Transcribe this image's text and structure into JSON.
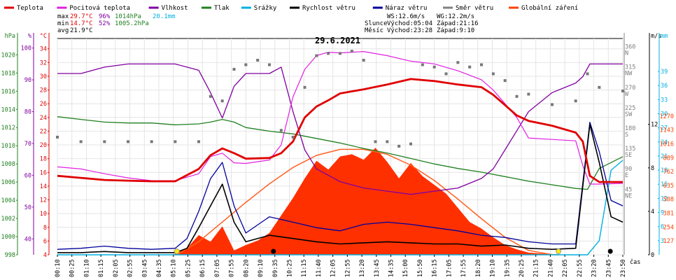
{
  "chart_data": {
    "type": "line",
    "title": "29.6.2021",
    "legend": [
      {
        "label": "Teplota",
        "color": "#e00000"
      },
      {
        "label": "Pocitová teplota",
        "color": "#e020e0"
      },
      {
        "label": "Vlhkost",
        "color": "#8000a0"
      },
      {
        "label": "Tlak",
        "color": "#208020"
      },
      {
        "label": "Srážky",
        "color": "#00b0e0"
      },
      {
        "label": "Rychlost větru",
        "color": "#000000"
      },
      {
        "label": "Náraz větru",
        "color": "#00009a"
      },
      {
        "label": "Směr větru",
        "color": "#808080"
      },
      {
        "label": "Globální záření",
        "color": "#ff4000"
      }
    ],
    "stats": {
      "max_label": "max",
      "max_temp": "29.7°C",
      "max_hum": "96%",
      "max_press": "1014hPa",
      "rain_total": "20.1mm",
      "min_label": "min",
      "min_temp": "14.7°C",
      "min_hum": "52%",
      "min_press": "1005.2hPa",
      "avg_label": "avg",
      "avg_temp": "21.9°C",
      "ws": "WS:12.6m/s",
      "wg": "WG:12.2m/s",
      "sun_label": "Slunce",
      "sunrise": "Východ:05:04",
      "sunset": "Západ:21:16",
      "moon_label": "Měsíc",
      "moonrise": "Východ:23:28",
      "moonset": "Západ:9:10"
    },
    "axes": {
      "pressure": {
        "unit": "hPa",
        "color": "#208020",
        "ticks": [
          998,
          1000,
          1002,
          1004,
          1006,
          1008,
          1010,
          1012,
          1014,
          1016,
          1018,
          1020
        ]
      },
      "humidity": {
        "unit": "%",
        "color": "#8000a0",
        "ticks": [
          40,
          50,
          60,
          70,
          80,
          90,
          100
        ]
      },
      "temperature": {
        "unit": "°C",
        "color": "#e00000",
        "ticks": [
          4,
          6,
          8,
          10,
          12,
          14,
          16,
          18,
          20,
          22,
          24,
          26,
          28,
          30,
          32,
          34
        ]
      },
      "wind_dir": {
        "color": "#808080",
        "ticks": [
          {
            "v": 360,
            "l": "N"
          },
          {
            "v": 315,
            "l": "NW"
          },
          {
            "v": 270,
            "l": "W"
          },
          {
            "v": 225,
            "l": "SW"
          },
          {
            "v": 180,
            "l": "S"
          },
          {
            "v": 135,
            "l": "SE"
          },
          {
            "v": 90,
            "l": "E"
          },
          {
            "v": 45,
            "l": "NE"
          }
        ]
      },
      "wind_speed": {
        "unit": "m/s",
        "color": "#000000",
        "ticks": [
          0,
          4,
          8,
          12
        ]
      },
      "rain": {
        "unit": "mm",
        "color": "#00b0e0",
        "ticks": [
          3,
          6,
          9,
          12,
          15,
          18,
          21,
          24,
          27,
          30,
          33,
          36,
          39
        ]
      },
      "radiation": {
        "unit": "W/m²",
        "color": "#ff4000",
        "ticks": [
          127,
          254,
          381,
          508,
          635,
          762,
          889,
          1016,
          1143,
          1270
        ]
      },
      "x_label": "čas",
      "x_ticks": [
        "00:10",
        "00:25",
        "01:10",
        "01:15",
        "02:05",
        "02:55",
        "03:45",
        "04:35",
        "05:10",
        "05:25",
        "06:15",
        "07:05",
        "07:55",
        "08:20",
        "09:10",
        "09:35",
        "10:25",
        "11:15",
        "11:40",
        "12:05",
        "12:55",
        "13:20",
        "13:45",
        "14:35",
        "15:00",
        "15:50",
        "16:15",
        "17:05",
        "17:55",
        "18:20",
        "19:10",
        "19:35",
        "20:25",
        "21:15",
        "21:40",
        "22:05",
        "22:55",
        "23:20",
        "23:45",
        "23:50"
      ]
    },
    "series": {
      "temperature": {
        "x": [
          0,
          1,
          2,
          3,
          4,
          5,
          6,
          6.5,
          7,
          7.5,
          8,
          9,
          9.5,
          10,
          10.5,
          11,
          11.5,
          12,
          13,
          14,
          15,
          16,
          17,
          18,
          18.5,
          19,
          19.5,
          20,
          21,
          22,
          22.3,
          22.6,
          23,
          24
        ],
        "y": [
          15.5,
          15.2,
          14.9,
          14.8,
          14.7,
          14.7,
          16.5,
          18.5,
          19.5,
          18.8,
          18.0,
          18.1,
          18.8,
          20.5,
          24.0,
          25.6,
          26.5,
          27.5,
          28.1,
          28.8,
          29.6,
          29.3,
          28.8,
          28.4,
          27.3,
          25.8,
          24.3,
          23.5,
          22.8,
          21.8,
          20.5,
          15.5,
          14.6,
          14.6
        ]
      },
      "feels_like": {
        "x": [
          0,
          1,
          2,
          3,
          4,
          5,
          6,
          6.5,
          7,
          7.5,
          8,
          9,
          9.5,
          10,
          10.5,
          11,
          11.5,
          12,
          13,
          14,
          15,
          16,
          17,
          18,
          18.5,
          19,
          19.5,
          20,
          21,
          22,
          22.3,
          22.6,
          23,
          24
        ],
        "y": [
          16.8,
          16.5,
          15.8,
          15.2,
          14.8,
          14.8,
          15.8,
          18.3,
          18.8,
          17.4,
          17.3,
          17.8,
          20.0,
          27.0,
          31.0,
          33.0,
          33.5,
          33.4,
          33.6,
          33.0,
          32.2,
          31.8,
          30.8,
          29.5,
          28.0,
          26.0,
          24.0,
          21.0,
          20.8,
          20.6,
          17.0,
          14.3,
          14.3,
          14.4
        ]
      },
      "humidity": {
        "x": [
          0,
          1,
          2,
          3,
          4,
          5,
          5.5,
          6,
          6.5,
          7,
          7.5,
          8,
          9,
          9.5,
          10,
          10.5,
          11,
          11.5,
          12,
          13,
          14,
          15,
          16,
          17,
          18,
          18.5,
          19,
          19.5,
          20,
          21,
          22,
          22.3,
          22.6,
          23,
          24
        ],
        "y": [
          92,
          92,
          94,
          95,
          95,
          95,
          94,
          93,
          86,
          78,
          88,
          92,
          92,
          94,
          80,
          68,
          62,
          60,
          58,
          56,
          55,
          54,
          55,
          56,
          59,
          62,
          68,
          74,
          80,
          86,
          89,
          91,
          95,
          95,
          95
        ]
      },
      "pressure": {
        "x": [
          0,
          1,
          2,
          3,
          4,
          5,
          6,
          6.5,
          7,
          7.5,
          8,
          9,
          10,
          11,
          12,
          13,
          14,
          15,
          16,
          17,
          18,
          19,
          20,
          21,
          22,
          22.5,
          23,
          24
        ],
        "y": [
          1013.2,
          1012.9,
          1012.6,
          1012.5,
          1012.5,
          1012.3,
          1012.4,
          1012.6,
          1012.9,
          1012.6,
          1012.0,
          1011.6,
          1011.3,
          1010.8,
          1010.3,
          1009.7,
          1009.2,
          1008.6,
          1008.0,
          1007.5,
          1007.1,
          1006.6,
          1006.1,
          1005.7,
          1005.3,
          1005.2,
          1007.5,
          1008.8
        ]
      },
      "rain": {
        "x": [
          0,
          22.5,
          23,
          23.5,
          24
        ],
        "y": [
          0,
          0,
          3,
          18,
          20.1
        ]
      },
      "wind_speed": {
        "x": [
          0,
          1,
          2,
          3,
          4,
          5,
          5.5,
          6,
          6.5,
          7,
          7.5,
          8,
          9,
          10,
          11,
          12,
          13,
          14,
          15,
          16,
          17,
          18,
          19,
          20,
          21,
          22,
          22.6,
          23,
          23.5,
          24
        ],
        "y": [
          0.2,
          0.2,
          0.3,
          0.2,
          0.2,
          0.2,
          0.6,
          2.5,
          4.5,
          6.5,
          3.0,
          1.2,
          1.8,
          1.5,
          1.2,
          1.0,
          1.1,
          1.2,
          1.1,
          1.0,
          1.0,
          0.8,
          0.9,
          0.6,
          0.5,
          0.6,
          12.0,
          8.5,
          3.5,
          3.0
        ]
      },
      "wind_gust": {
        "x": [
          0,
          1,
          2,
          3,
          4,
          5,
          5.5,
          6,
          6.5,
          7,
          7.5,
          8,
          9,
          10,
          11,
          12,
          13,
          14,
          15,
          16,
          17,
          18,
          19,
          20,
          21,
          22,
          22.6,
          23,
          23.5,
          24
        ],
        "y": [
          0.5,
          0.6,
          0.8,
          0.6,
          0.5,
          0.6,
          1.5,
          4.0,
          7.0,
          8.5,
          4.5,
          2.0,
          3.5,
          3.0,
          2.5,
          2.2,
          2.8,
          3.0,
          2.8,
          2.5,
          2.2,
          1.8,
          1.6,
          1.2,
          1.0,
          1.0,
          12.2,
          9.5,
          5.0,
          4.5
        ]
      },
      "wind_dir": {
        "x": [
          0,
          1,
          2,
          3,
          4,
          5,
          6,
          6.5,
          7,
          7.5,
          8,
          8.5,
          9,
          9.5,
          10,
          10.5,
          11,
          11.5,
          12,
          12.5,
          13,
          13.5,
          14,
          14.5,
          15,
          15.5,
          16,
          16.5,
          17,
          17.5,
          18,
          18.5,
          19,
          19.5,
          20,
          21,
          22,
          22.5,
          23,
          24
        ],
        "y": [
          160,
          150,
          150,
          150,
          150,
          150,
          150,
          250,
          240,
          310,
          320,
          330,
          320,
          175,
          160,
          270,
          340,
          345,
          345,
          350,
          330,
          150,
          150,
          140,
          145,
          320,
          315,
          300,
          325,
          315,
          320,
          300,
          285,
          250,
          255,
          232,
          240,
          300,
          270,
          262
        ]
      },
      "radiation": {
        "x": [
          0,
          4.9,
          5.5,
          6,
          6.5,
          7,
          7.5,
          8,
          8.5,
          9,
          9.5,
          10,
          10.5,
          11,
          11.5,
          12,
          12.5,
          13,
          13.5,
          14,
          14.5,
          15,
          15.5,
          16,
          16.5,
          17,
          17.5,
          18,
          18.5,
          19,
          19.5,
          20,
          21,
          21.3,
          24
        ],
        "y": [
          0,
          0,
          60,
          180,
          120,
          260,
          40,
          90,
          130,
          200,
          360,
          520,
          700,
          860,
          780,
          900,
          920,
          870,
          980,
          850,
          700,
          840,
          720,
          640,
          560,
          430,
          300,
          240,
          160,
          90,
          50,
          20,
          5,
          0,
          0
        ]
      },
      "clear_sky_radiation": {
        "x": [
          5.07,
          6,
          7,
          8,
          9,
          10,
          11,
          12,
          13,
          14,
          15,
          16,
          17,
          18,
          19,
          20,
          21,
          21.27
        ],
        "y": [
          0,
          120,
          300,
          480,
          650,
          800,
          910,
          965,
          965,
          920,
          820,
          680,
          510,
          330,
          160,
          40,
          2,
          0
        ]
      }
    },
    "markers": {
      "sun_rise": 5.07,
      "sun_set": 21.27,
      "moon_rise": 23.47,
      "moon_set": 9.17
    }
  }
}
